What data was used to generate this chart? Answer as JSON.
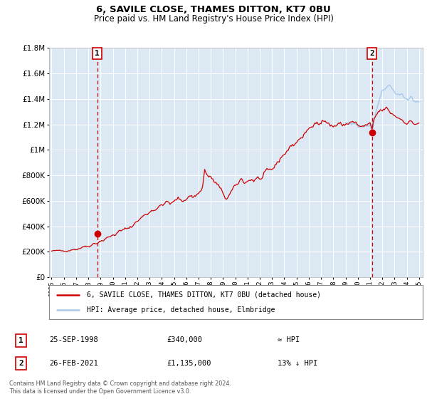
{
  "title_line1": "6, SAVILE CLOSE, THAMES DITTON, KT7 0BU",
  "title_line2": "Price paid vs. HM Land Registry's House Price Index (HPI)",
  "legend_entry1": "6, SAVILE CLOSE, THAMES DITTON, KT7 0BU (detached house)",
  "legend_entry2": "HPI: Average price, detached house, Elmbridge",
  "annotation1_date": "25-SEP-1998",
  "annotation1_price": "£340,000",
  "annotation1_hpi": "≈ HPI",
  "annotation2_date": "26-FEB-2021",
  "annotation2_price": "£1,135,000",
  "annotation2_hpi": "13% ↓ HPI",
  "footer1": "Contains HM Land Registry data © Crown copyright and database right 2024.",
  "footer2": "This data is licensed under the Open Government Licence v3.0.",
  "hpi_color": "#a8c8e8",
  "price_color": "#cc0000",
  "bg_color": "#dce9f5",
  "vline_color": "#cc0000",
  "ylim": [
    0,
    1800000
  ],
  "yticks": [
    0,
    200000,
    400000,
    600000,
    800000,
    1000000,
    1200000,
    1400000,
    1600000,
    1800000
  ],
  "sale1_year": 1998.73,
  "sale1_price": 340000,
  "sale2_year": 2021.15,
  "sale2_price": 1135000,
  "xmin": 1994.8,
  "xmax": 2025.3
}
